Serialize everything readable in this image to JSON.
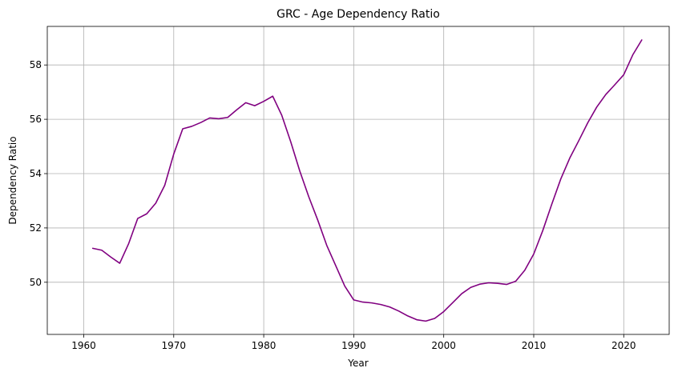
{
  "chart_data": {
    "type": "line",
    "title": "GRC - Age Dependency Ratio",
    "xlabel": "Year",
    "ylabel": "Dependency Ratio",
    "xlim": [
      1955.95,
      2025.05
    ],
    "ylim": [
      48.08,
      59.42
    ],
    "xticks": [
      1960,
      1970,
      1980,
      1990,
      2000,
      2010,
      2020
    ],
    "yticks": [
      50,
      52,
      54,
      56,
      58
    ],
    "grid": true,
    "line_color": "#800080",
    "series": [
      {
        "x": [
          1961,
          1962,
          1963,
          1964,
          1965,
          1966,
          1967,
          1968,
          1969,
          1970,
          1971,
          1972,
          1973,
          1974,
          1975,
          1976,
          1977,
          1978,
          1979,
          1980,
          1981,
          1982,
          1983,
          1984,
          1985,
          1986,
          1987,
          1988,
          1989,
          1990,
          1991,
          1992,
          1993,
          1994,
          1995,
          1996,
          1997,
          1998,
          1999,
          2000,
          2001,
          2002,
          2003,
          2004,
          2005,
          2006,
          2007,
          2008,
          2009,
          2010,
          2011,
          2012,
          2013,
          2014,
          2015,
          2016,
          2017,
          2018,
          2019,
          2020,
          2021,
          2022
        ],
        "values": [
          51.25,
          51.18,
          50.93,
          50.7,
          51.43,
          52.35,
          52.52,
          52.91,
          53.57,
          54.72,
          55.65,
          55.74,
          55.88,
          56.05,
          56.02,
          56.07,
          56.35,
          56.61,
          56.5,
          56.66,
          56.85,
          56.15,
          55.17,
          54.1,
          53.15,
          52.29,
          51.36,
          50.61,
          49.86,
          49.35,
          49.27,
          49.24,
          49.18,
          49.09,
          48.94,
          48.76,
          48.62,
          48.57,
          48.67,
          48.92,
          49.25,
          49.58,
          49.81,
          49.93,
          49.98,
          49.96,
          49.92,
          50.04,
          50.44,
          51.04,
          51.9,
          52.87,
          53.8,
          54.57,
          55.21,
          55.87,
          56.45,
          56.91,
          57.27,
          57.64,
          58.37,
          58.92
        ]
      }
    ]
  }
}
